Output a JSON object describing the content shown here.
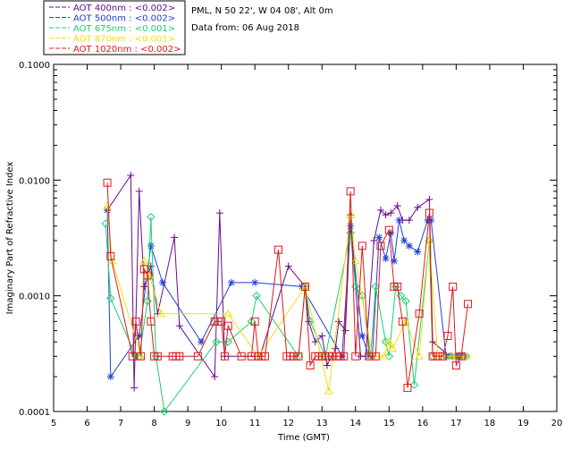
{
  "header": {
    "line1": "PML, N 50 22', W 04 08', Alt 0m",
    "line2": "Data from: 06 Aug 2018"
  },
  "chart_data": {
    "type": "scatter",
    "title": "",
    "xlabel": "Time (GMT)",
    "ylabel": "Imaginary Part of Refractive Index",
    "xlim": [
      5,
      20
    ],
    "ylim": [
      0.0001,
      0.1
    ],
    "yscale": "log",
    "x_ticks": [
      5,
      6,
      7,
      8,
      9,
      10,
      11,
      12,
      13,
      14,
      15,
      16,
      17,
      18,
      19,
      20
    ],
    "x_tick_labels": [
      "5",
      "6",
      "7",
      "8",
      "9",
      "10",
      "11",
      "12",
      "13",
      "14",
      "15",
      "16",
      "17",
      "18",
      "19",
      "20"
    ],
    "y_ticks": [
      0.0001,
      0.001,
      0.01,
      0.1
    ],
    "y_tick_labels": [
      "0.0001",
      "0.0010",
      "0.0100",
      "0.1000"
    ],
    "legend_position": "top-left",
    "series": [
      {
        "name": "AOT  400nm : <0.002>",
        "color": "#6a0a8f",
        "marker": "plus",
        "points": [
          [
            6.6,
            0.0055
          ],
          [
            7.3,
            0.011
          ],
          [
            7.4,
            0.00016
          ],
          [
            7.55,
            0.008
          ],
          [
            7.7,
            0.0012
          ],
          [
            7.9,
            0.0018
          ],
          [
            8.1,
            0.0007
          ],
          [
            8.6,
            0.0032
          ],
          [
            8.75,
            0.00055
          ],
          [
            9.8,
            0.0002
          ],
          [
            9.95,
            0.0052
          ],
          [
            10.1,
            0.0003
          ],
          [
            11.0,
            0.0003
          ],
          [
            11.15,
            0.0003
          ],
          [
            12.0,
            0.0018
          ],
          [
            12.5,
            0.0012
          ],
          [
            12.6,
            0.0006
          ],
          [
            12.8,
            0.0004
          ],
          [
            13.0,
            0.00045
          ],
          [
            13.15,
            0.00025
          ],
          [
            13.4,
            0.00035
          ],
          [
            13.5,
            0.0006
          ],
          [
            13.7,
            0.0005
          ],
          [
            13.85,
            0.005
          ],
          [
            14.15,
            0.0003
          ],
          [
            14.3,
            0.0003
          ],
          [
            14.55,
            0.003
          ],
          [
            14.75,
            0.0055
          ],
          [
            14.9,
            0.005
          ],
          [
            15.05,
            0.0052
          ],
          [
            15.25,
            0.006
          ],
          [
            15.4,
            0.0045
          ],
          [
            15.6,
            0.0045
          ],
          [
            15.85,
            0.0058
          ],
          [
            16.2,
            0.0068
          ],
          [
            16.3,
            0.0004
          ],
          [
            16.8,
            0.0003
          ],
          [
            17.0,
            0.0003
          ],
          [
            17.1,
            0.0003
          ],
          [
            17.2,
            0.0003
          ]
        ]
      },
      {
        "name": "AOT  500nm : <0.002>",
        "color": "#1f3fd8",
        "marker": "asterisk",
        "points": [
          [
            6.6,
            0.0055
          ],
          [
            6.7,
            0.0002
          ],
          [
            7.55,
            0.00045
          ],
          [
            7.9,
            0.0027
          ],
          [
            8.25,
            0.0013
          ],
          [
            9.4,
            0.0004
          ],
          [
            10.3,
            0.0013
          ],
          [
            11.0,
            0.0013
          ],
          [
            12.4,
            0.0012
          ],
          [
            13.6,
            0.0003
          ],
          [
            13.85,
            0.004
          ],
          [
            14.2,
            0.00045
          ],
          [
            14.4,
            0.0003
          ],
          [
            14.5,
            0.0003
          ],
          [
            14.7,
            0.0032
          ],
          [
            14.9,
            0.0021
          ],
          [
            15.05,
            0.0035
          ],
          [
            15.15,
            0.002
          ],
          [
            15.3,
            0.0045
          ],
          [
            15.45,
            0.003
          ],
          [
            15.6,
            0.0027
          ],
          [
            15.85,
            0.0024
          ],
          [
            16.15,
            0.0045
          ],
          [
            16.25,
            0.0045
          ],
          [
            16.7,
            0.0003
          ],
          [
            16.85,
            0.0003
          ],
          [
            17.0,
            0.0003
          ],
          [
            17.1,
            0.0003
          ],
          [
            17.25,
            0.0003
          ]
        ]
      },
      {
        "name": "AOT  675nm : <0.001>",
        "color": "#1ccf6e",
        "marker": "diamond",
        "points": [
          [
            6.55,
            0.0042
          ],
          [
            6.7,
            0.00095
          ],
          [
            7.45,
            0.0003
          ],
          [
            7.55,
            0.0003
          ],
          [
            7.8,
            0.0009
          ],
          [
            7.9,
            0.0048
          ],
          [
            8.05,
            0.0003
          ],
          [
            8.3,
            0.0001
          ],
          [
            9.85,
            0.0004
          ],
          [
            10.2,
            0.0004
          ],
          [
            10.9,
            0.0006
          ],
          [
            11.05,
            0.001
          ],
          [
            12.3,
            0.0003
          ],
          [
            12.5,
            0.0012
          ],
          [
            12.65,
            0.0006
          ],
          [
            13.1,
            0.0003
          ],
          [
            13.85,
            0.0035
          ],
          [
            14.0,
            0.0012
          ],
          [
            14.2,
            0.001
          ],
          [
            14.45,
            0.0003
          ],
          [
            14.6,
            0.0012
          ],
          [
            14.9,
            0.0004
          ],
          [
            15.0,
            0.0003
          ],
          [
            15.2,
            0.0012
          ],
          [
            15.35,
            0.001
          ],
          [
            15.5,
            0.0009
          ],
          [
            15.75,
            0.00017
          ],
          [
            16.2,
            0.003
          ],
          [
            16.3,
            0.0003
          ],
          [
            16.7,
            0.0003
          ],
          [
            16.9,
            0.0003
          ],
          [
            17.1,
            0.0003
          ],
          [
            17.3,
            0.0003
          ]
        ]
      },
      {
        "name": "AOT  870nm : <0.001>",
        "color": "#f0e010",
        "marker": "triangle",
        "points": [
          [
            6.6,
            0.006
          ],
          [
            6.75,
            0.002
          ],
          [
            7.6,
            0.0003
          ],
          [
            7.7,
            0.002
          ],
          [
            7.85,
            0.0015
          ],
          [
            8.2,
            0.0007
          ],
          [
            10.2,
            0.0007
          ],
          [
            11.1,
            0.0003
          ],
          [
            12.5,
            0.0012
          ],
          [
            13.2,
            0.00015
          ],
          [
            13.85,
            0.005
          ],
          [
            14.0,
            0.002
          ],
          [
            14.5,
            0.0003
          ],
          [
            14.85,
            0.0003
          ],
          [
            15.0,
            0.0004
          ],
          [
            15.1,
            0.00035
          ],
          [
            15.5,
            0.0006
          ],
          [
            16.2,
            0.003
          ],
          [
            16.45,
            0.0003
          ],
          [
            16.9,
            0.0003
          ],
          [
            17.3,
            0.0003
          ],
          [
            15.9,
            0.0003
          ]
        ]
      },
      {
        "name": "AOT 1020nm : <0.002>",
        "color": "#e01818",
        "marker": "square",
        "points": [
          [
            6.6,
            0.0095
          ],
          [
            6.7,
            0.0022
          ],
          [
            7.35,
            0.0003
          ],
          [
            7.45,
            0.0006
          ],
          [
            7.6,
            0.0003
          ],
          [
            7.7,
            0.0017
          ],
          [
            7.8,
            0.0015
          ],
          [
            7.9,
            0.0006
          ],
          [
            8.0,
            0.0003
          ],
          [
            8.1,
            0.0003
          ],
          [
            8.55,
            0.0003
          ],
          [
            8.65,
            0.0003
          ],
          [
            8.75,
            0.0003
          ],
          [
            9.3,
            0.0003
          ],
          [
            9.8,
            0.0006
          ],
          [
            9.9,
            0.0006
          ],
          [
            10.0,
            0.0006
          ],
          [
            10.1,
            0.0003
          ],
          [
            10.2,
            0.00055
          ],
          [
            10.6,
            0.0003
          ],
          [
            10.9,
            0.0003
          ],
          [
            11.0,
            0.0006
          ],
          [
            11.1,
            0.0003
          ],
          [
            11.2,
            0.0003
          ],
          [
            11.3,
            0.0003
          ],
          [
            11.7,
            0.0025
          ],
          [
            11.95,
            0.0003
          ],
          [
            12.05,
            0.0003
          ],
          [
            12.15,
            0.0003
          ],
          [
            12.3,
            0.0003
          ],
          [
            12.5,
            0.0012
          ],
          [
            12.65,
            0.00025
          ],
          [
            12.8,
            0.0003
          ],
          [
            12.9,
            0.0003
          ],
          [
            13.0,
            0.0003
          ],
          [
            13.1,
            0.0003
          ],
          [
            13.2,
            0.0003
          ],
          [
            13.3,
            0.0003
          ],
          [
            13.45,
            0.0003
          ],
          [
            13.55,
            0.0003
          ],
          [
            13.65,
            0.0003
          ],
          [
            13.85,
            0.008
          ],
          [
            14.0,
            0.0003
          ],
          [
            14.2,
            0.0027
          ],
          [
            14.4,
            0.0003
          ],
          [
            14.6,
            0.0003
          ],
          [
            14.75,
            0.0027
          ],
          [
            15.0,
            0.0037
          ],
          [
            15.15,
            0.0012
          ],
          [
            15.25,
            0.0012
          ],
          [
            15.4,
            0.0006
          ],
          [
            15.55,
            0.00016
          ],
          [
            15.9,
            0.0007
          ],
          [
            16.2,
            0.0052
          ],
          [
            16.3,
            0.0003
          ],
          [
            16.45,
            0.0003
          ],
          [
            16.6,
            0.0003
          ],
          [
            16.75,
            0.00045
          ],
          [
            16.9,
            0.0012
          ],
          [
            17.0,
            0.00025
          ],
          [
            17.15,
            0.0003
          ],
          [
            17.35,
            0.00085
          ]
        ]
      }
    ]
  }
}
